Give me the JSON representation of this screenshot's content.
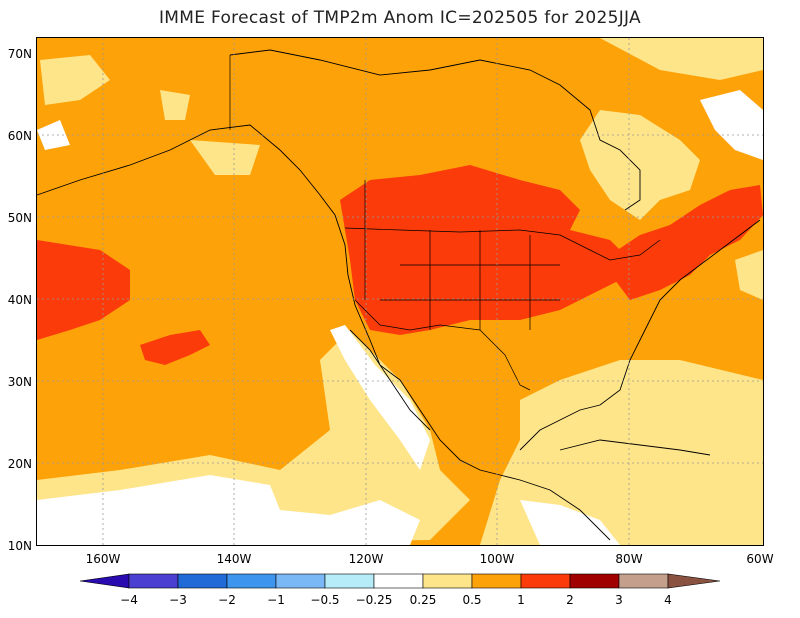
{
  "title": "IMME Forecast of TMP2m Anom IC=202505 for 2025JJA",
  "map": {
    "lat_labels": [
      "70N",
      "60N",
      "50N",
      "40N",
      "30N",
      "20N",
      "10N"
    ],
    "lon_labels": [
      "160W",
      "140W",
      "120W",
      "100W",
      "80W",
      "60W"
    ]
  },
  "legend": {
    "labels": [
      "−4",
      "−3",
      "−2",
      "−1",
      "−0.5",
      "−0.25",
      "0.25",
      "0.5",
      "1",
      "2",
      "3",
      "4"
    ],
    "colors": [
      "#2a0bb0",
      "#4a3fd0",
      "#1f6ad6",
      "#3d95ee",
      "#7ab8f5",
      "#b5ecf7",
      "#ffffff",
      "#fee58a",
      "#fea20a",
      "#fb3b0a",
      "#a00000",
      "#c4a08c",
      "#8a5240"
    ]
  }
}
